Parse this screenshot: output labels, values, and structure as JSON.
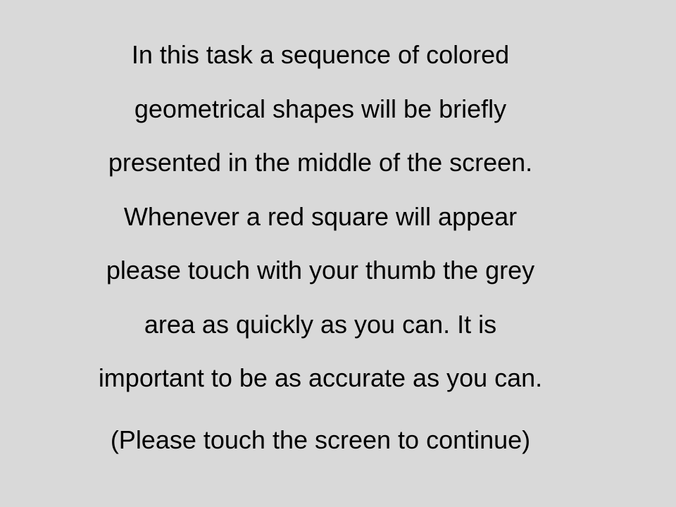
{
  "instructions": {
    "lines": [
      "In this task a sequence of colored",
      "geometrical shapes will be briefly",
      "presented in the middle of the screen.",
      "Whenever a red square will appear",
      "please touch with your thumb the grey",
      "area as quickly as you can. It is",
      "important to be as accurate as you can."
    ],
    "continue_prompt": "(Please touch the screen to continue)"
  },
  "colors": {
    "background": "#d9d9d9",
    "text": "#000000"
  }
}
